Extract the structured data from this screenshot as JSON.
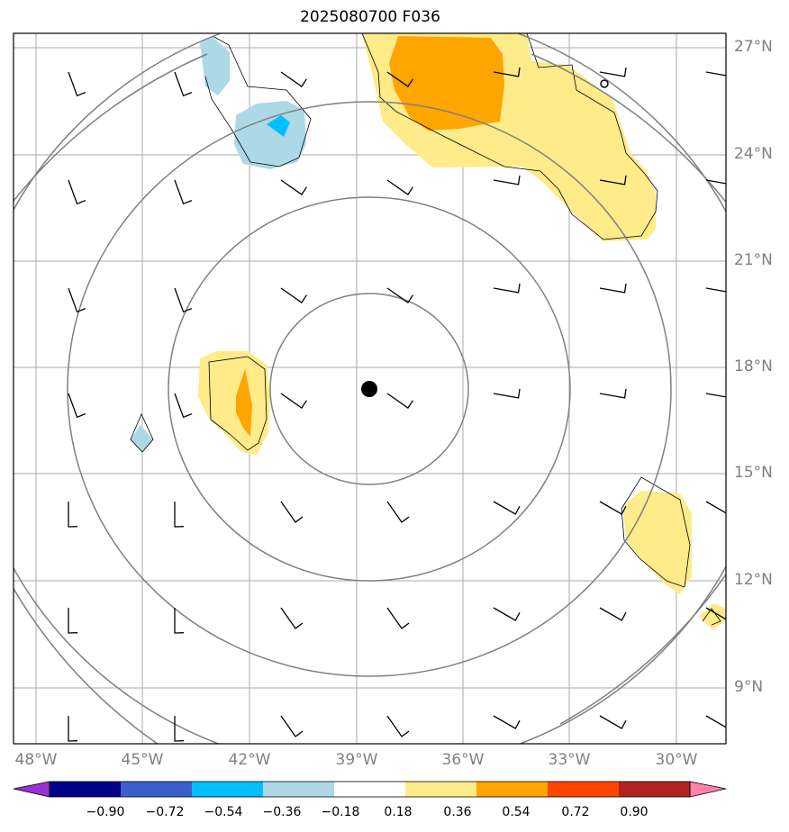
{
  "title": "2025080700 F036",
  "lon_labels": [
    "48°W",
    "45°W",
    "42°W",
    "39°W",
    "36°W",
    "33°W",
    "30°W"
  ],
  "lat_labels": [
    "27°N",
    "24°N",
    "21°N",
    "18°N",
    "15°N",
    "12°N",
    "9°N"
  ],
  "colorbar_labels": [
    "−0.90",
    "−0.72",
    "−0.54",
    "−0.36",
    "−0.18",
    "0.18",
    "0.36",
    "0.54",
    "0.72",
    "0.90"
  ],
  "colorbar_colors": [
    "#9932cc",
    "#00008b",
    "#3a5fcd",
    "#00bfff",
    "#add8e6",
    "#ffffff",
    "#ffeb8a",
    "#ffa500",
    "#ff4500",
    "#b22222",
    "#ff82ab"
  ],
  "map": {
    "lon_range": [
      -48.6,
      -28.6
    ],
    "lat_range": [
      7.4,
      27.4
    ],
    "center": {
      "lon": -38.6,
      "lat": 17.4
    },
    "range_rings": 5,
    "grid": true
  }
}
